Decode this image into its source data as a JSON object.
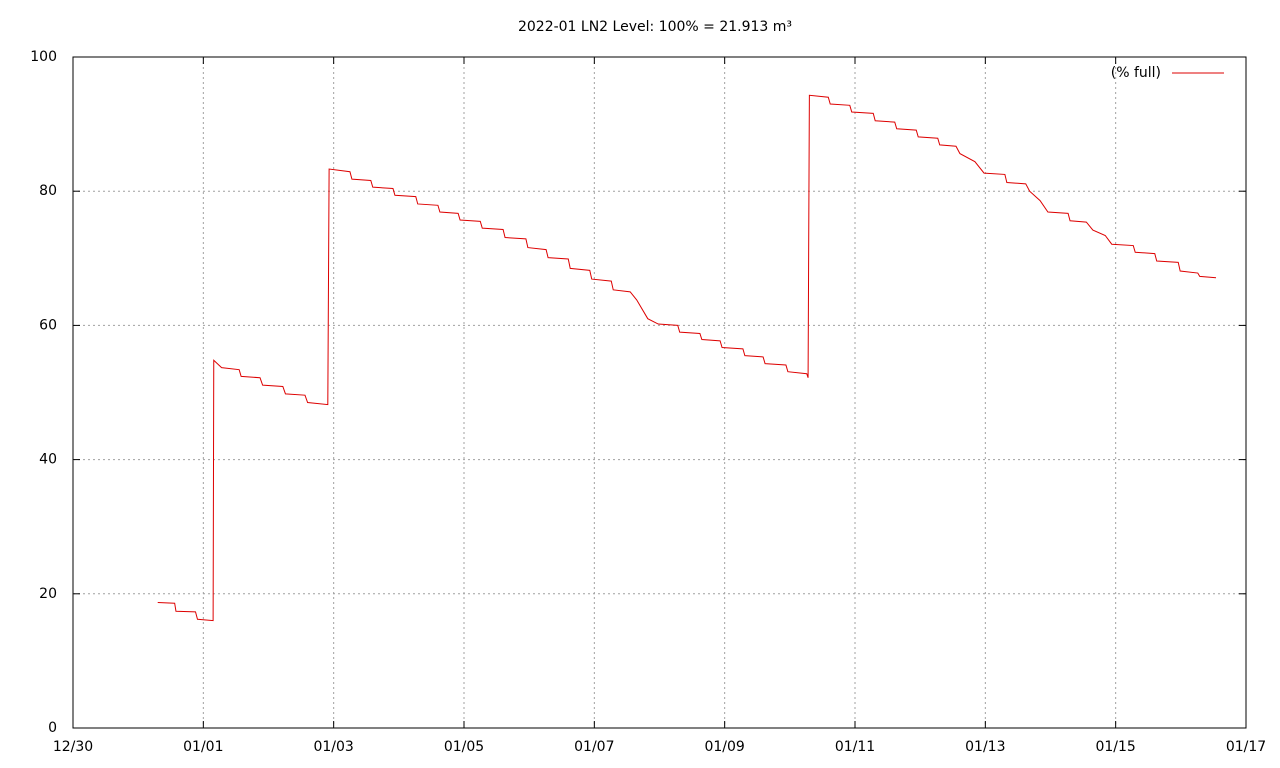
{
  "chart_data": {
    "type": "line",
    "title": "2022-01 LN2 Level: 100% = 21.913 m³",
    "x": [
      1.3,
      1.56,
      1.58,
      1.88,
      1.91,
      2.15,
      2.16,
      2.28,
      2.55,
      2.58,
      2.87,
      2.91,
      3.22,
      3.26,
      3.56,
      3.6,
      3.91,
      3.93,
      4.25,
      4.28,
      4.57,
      4.6,
      4.91,
      4.94,
      5.26,
      5.29,
      5.6,
      5.63,
      5.91,
      5.94,
      6.25,
      6.28,
      6.6,
      6.63,
      6.95,
      6.98,
      7.26,
      7.29,
      7.6,
      7.63,
      7.93,
      7.96,
      8.26,
      8.29,
      8.55,
      8.65,
      8.82,
      8.98,
      9.28,
      9.31,
      9.62,
      9.65,
      9.93,
      9.96,
      10.28,
      10.31,
      10.59,
      10.62,
      10.94,
      10.97,
      11.26,
      11.28,
      11.3,
      11.59,
      11.62,
      11.92,
      11.95,
      12.28,
      12.31,
      12.61,
      12.64,
      12.94,
      12.97,
      13.27,
      13.3,
      13.55,
      13.61,
      13.84,
      13.98,
      14.3,
      14.33,
      14.62,
      14.68,
      14.84,
      14.96,
      15.27,
      15.3,
      15.55,
      15.65,
      15.84,
      15.94,
      16.27,
      16.3,
      16.6,
      16.63,
      16.96,
      16.99,
      17.26,
      17.29,
      17.54
    ],
    "series": [
      {
        "name": "(% full)",
        "color": "#dd0000",
        "values": [
          18.7,
          18.6,
          17.4,
          17.3,
          16.2,
          16.0,
          54.8,
          53.7,
          53.4,
          52.4,
          52.2,
          51.1,
          50.9,
          49.8,
          49.6,
          48.5,
          48.2,
          83.3,
          82.9,
          81.8,
          81.6,
          80.6,
          80.4,
          79.4,
          79.2,
          78.1,
          77.9,
          76.9,
          76.7,
          75.7,
          75.5,
          74.5,
          74.3,
          73.1,
          72.9,
          71.6,
          71.3,
          70.1,
          69.9,
          68.5,
          68.2,
          66.9,
          66.6,
          65.3,
          65.0,
          63.8,
          61.0,
          60.2,
          60.0,
          59.0,
          58.8,
          57.9,
          57.7,
          56.7,
          56.5,
          55.5,
          55.3,
          54.3,
          54.1,
          53.1,
          52.8,
          52.2,
          94.3,
          94.0,
          93.0,
          92.8,
          91.8,
          91.6,
          90.5,
          90.3,
          89.3,
          89.1,
          88.1,
          87.9,
          86.9,
          86.7,
          85.6,
          84.4,
          82.7,
          82.5,
          81.3,
          81.1,
          80.0,
          78.6,
          76.9,
          76.7,
          75.6,
          75.4,
          74.2,
          73.4,
          72.1,
          71.9,
          70.9,
          70.7,
          69.6,
          69.4,
          68.1,
          67.8,
          67.3,
          67.1
        ]
      }
    ],
    "xlim": [
      0,
      18
    ],
    "xticks": [
      {
        "value": 0,
        "label": "12/30"
      },
      {
        "value": 2,
        "label": "01/01"
      },
      {
        "value": 4,
        "label": "01/03"
      },
      {
        "value": 6,
        "label": "01/05"
      },
      {
        "value": 8,
        "label": "01/07"
      },
      {
        "value": 10,
        "label": "01/09"
      },
      {
        "value": 12,
        "label": "01/11"
      },
      {
        "value": 14,
        "label": "01/13"
      },
      {
        "value": 16,
        "label": "01/15"
      },
      {
        "value": 18,
        "label": "01/17"
      }
    ],
    "ylim": [
      0,
      100
    ],
    "yticks": [
      0,
      20,
      40,
      60,
      80,
      100
    ],
    "grid": true,
    "legend": "top-right"
  }
}
